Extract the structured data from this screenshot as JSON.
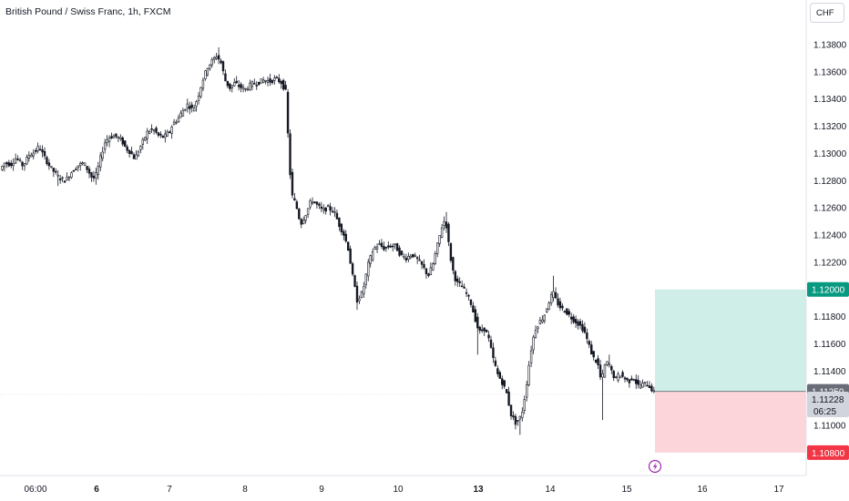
{
  "header": {
    "title": "British Pound / Swiss Franc, 1h, FXCM"
  },
  "currency_button": {
    "label": "CHF"
  },
  "colors": {
    "candle": "#131722",
    "target_zone": "#cfeee7",
    "stop_zone": "#fcd5db",
    "target_tag": "#089981",
    "stop_tag": "#f23645",
    "current_tag": "#6a6d78",
    "countdown_tag": "#d1d4dc",
    "event_marker": "#9c27b0"
  },
  "chart_data": {
    "type": "candlestick",
    "symbol": "GBP/CHF",
    "interval": "1h",
    "ylim": [
      1.106,
      1.1392
    ],
    "y_ticks": [
      "1.13800",
      "1.13600",
      "1.13400",
      "1.13200",
      "1.13000",
      "1.12800",
      "1.12600",
      "1.12400",
      "1.12200",
      "1.11800",
      "1.11600",
      "1.11400",
      "1.11000"
    ],
    "x_ticks": [
      {
        "label": "06:00",
        "bold": false
      },
      {
        "label": "6",
        "bold": true
      },
      {
        "label": "7",
        "bold": false
      },
      {
        "label": "8",
        "bold": false
      },
      {
        "label": "9",
        "bold": false
      },
      {
        "label": "10",
        "bold": false
      },
      {
        "label": "13",
        "bold": true
      },
      {
        "label": "14",
        "bold": false
      },
      {
        "label": "15",
        "bold": false
      },
      {
        "label": "16",
        "bold": false
      },
      {
        "label": "17",
        "bold": false
      }
    ],
    "path": [
      [
        0,
        1.1288
      ],
      [
        5,
        1.1293
      ],
      [
        12,
        1.1292
      ],
      [
        18,
        1.1297
      ],
      [
        25,
        1.1291
      ],
      [
        32,
        1.1299
      ],
      [
        38,
        1.1301
      ],
      [
        43,
        1.1305
      ],
      [
        48,
        1.1298
      ],
      [
        55,
        1.129
      ],
      [
        60,
        1.1286
      ],
      [
        65,
        1.1282
      ],
      [
        72,
        1.128
      ],
      [
        78,
        1.1286
      ],
      [
        85,
        1.1291
      ],
      [
        92,
        1.1293
      ],
      [
        97,
        1.1287
      ],
      [
        102,
        1.1281
      ],
      [
        106,
        1.1285
      ],
      [
        110,
        1.1296
      ],
      [
        115,
        1.1308
      ],
      [
        120,
        1.1312
      ],
      [
        126,
        1.1313
      ],
      [
        133,
        1.131
      ],
      [
        138,
        1.1304
      ],
      [
        143,
        1.1301
      ],
      [
        148,
        1.1296
      ],
      [
        152,
        1.1302
      ],
      [
        157,
        1.1309
      ],
      [
        162,
        1.1316
      ],
      [
        168,
        1.1318
      ],
      [
        174,
        1.1313
      ],
      [
        180,
        1.1312
      ],
      [
        186,
        1.1316
      ],
      [
        190,
        1.1322
      ],
      [
        195,
        1.1325
      ],
      [
        200,
        1.1331
      ],
      [
        206,
        1.1336
      ],
      [
        212,
        1.1332
      ],
      [
        217,
        1.1341
      ],
      [
        222,
        1.1353
      ],
      [
        228,
        1.1364
      ],
      [
        233,
        1.1368
      ],
      [
        238,
        1.1372
      ],
      [
        243,
        1.1366
      ],
      [
        247,
        1.1354
      ],
      [
        252,
        1.1348
      ],
      [
        258,
        1.1352
      ],
      [
        263,
        1.1349
      ],
      [
        269,
        1.1347
      ],
      [
        276,
        1.1351
      ],
      [
        283,
        1.1352
      ],
      [
        290,
        1.1354
      ],
      [
        297,
        1.1353
      ],
      [
        303,
        1.1355
      ],
      [
        309,
        1.1352
      ],
      [
        314,
        1.1345
      ],
      [
        317,
        1.13
      ],
      [
        320,
        1.127
      ],
      [
        325,
        1.1262
      ],
      [
        330,
        1.1248
      ],
      [
        336,
        1.1256
      ],
      [
        342,
        1.1266
      ],
      [
        348,
        1.1262
      ],
      [
        354,
        1.1258
      ],
      [
        360,
        1.126
      ],
      [
        367,
        1.1257
      ],
      [
        372,
        1.1248
      ],
      [
        377,
        1.1241
      ],
      [
        382,
        1.1231
      ],
      [
        387,
        1.121
      ],
      [
        392,
        1.1192
      ],
      [
        398,
        1.1198
      ],
      [
        404,
        1.1218
      ],
      [
        410,
        1.123
      ],
      [
        416,
        1.1233
      ],
      [
        422,
        1.123
      ],
      [
        428,
        1.1232
      ],
      [
        434,
        1.1232
      ],
      [
        440,
        1.1225
      ],
      [
        446,
        1.1223
      ],
      [
        452,
        1.1226
      ],
      [
        458,
        1.1222
      ],
      [
        464,
        1.1217
      ],
      [
        470,
        1.121
      ],
      [
        475,
        1.1218
      ],
      [
        480,
        1.1232
      ],
      [
        485,
        1.1246
      ],
      [
        489,
        1.1252
      ],
      [
        492,
        1.1236
      ],
      [
        496,
        1.1217
      ],
      [
        501,
        1.1205
      ],
      [
        506,
        1.1203
      ],
      [
        511,
        1.1198
      ],
      [
        516,
        1.1192
      ],
      [
        521,
        1.118
      ],
      [
        526,
        1.1168
      ],
      [
        531,
        1.1172
      ],
      [
        536,
        1.1165
      ],
      [
        541,
        1.115
      ],
      [
        546,
        1.1138
      ],
      [
        551,
        1.1132
      ],
      [
        556,
        1.1124
      ],
      [
        561,
        1.1108
      ],
      [
        566,
        1.1102
      ],
      [
        570,
        1.1104
      ],
      [
        574,
        1.1112
      ],
      [
        578,
        1.113
      ],
      [
        582,
        1.1152
      ],
      [
        587,
        1.117
      ],
      [
        592,
        1.1176
      ],
      [
        597,
        1.118
      ],
      [
        602,
        1.119
      ],
      [
        607,
        1.1198
      ],
      [
        611,
        1.1191
      ],
      [
        616,
        1.1186
      ],
      [
        621,
        1.1184
      ],
      [
        626,
        1.118
      ],
      [
        631,
        1.1177
      ],
      [
        636,
        1.1174
      ],
      [
        641,
        1.117
      ],
      [
        646,
        1.116
      ],
      [
        651,
        1.115
      ],
      [
        656,
        1.1146
      ],
      [
        660,
        1.1132
      ],
      [
        664,
        1.1144
      ],
      [
        668,
        1.1147
      ],
      [
        672,
        1.1138
      ],
      [
        676,
        1.1134
      ],
      [
        680,
        1.1138
      ],
      [
        685,
        1.1135
      ],
      [
        690,
        1.1132
      ],
      [
        695,
        1.1136
      ],
      [
        700,
        1.1129
      ],
      [
        705,
        1.113
      ],
      [
        710,
        1.1131
      ],
      [
        715,
        1.1127
      ],
      [
        719,
        1.11228
      ]
    ],
    "wick_extremes": [
      [
        42,
        1.1308
      ],
      [
        63,
        1.1276
      ],
      [
        106,
        1.1277
      ],
      [
        240,
        1.1378
      ],
      [
        330,
        1.1245
      ],
      [
        391,
        1.1185
      ],
      [
        490,
        1.1257
      ],
      [
        525,
        1.1152
      ],
      [
        572,
        1.1093
      ],
      [
        608,
        1.121
      ],
      [
        661,
        1.1104
      ],
      [
        668,
        1.1152
      ]
    ],
    "last_price": {
      "value": 1.11228,
      "label": "1.11228",
      "countdown": "06:25"
    },
    "position": {
      "type": "long",
      "entry": {
        "value": 1.1125,
        "label": "1.11250"
      },
      "target": {
        "value": 1.12,
        "label": "1.12000"
      },
      "stop": {
        "value": 1.108,
        "label": "1.10800"
      }
    }
  }
}
